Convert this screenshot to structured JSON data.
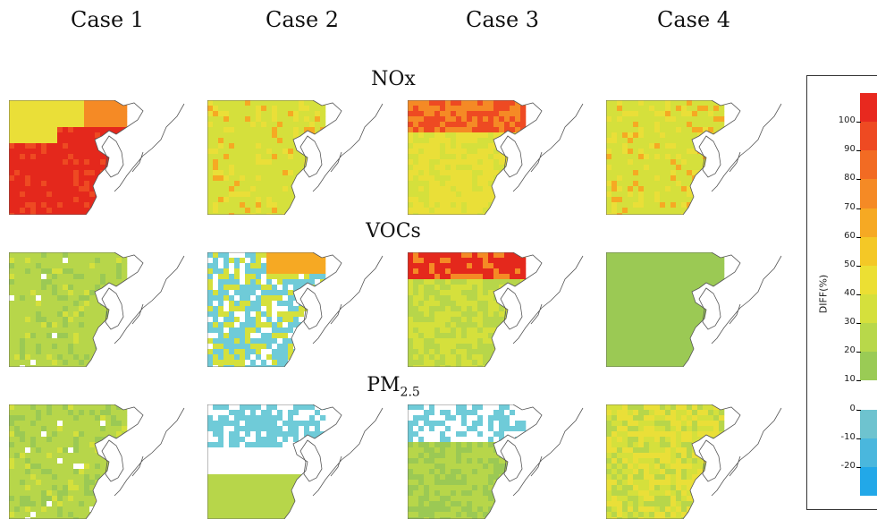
{
  "cases": [
    "Case 1",
    "Case 2",
    "Case 3",
    "Case 4"
  ],
  "rows": [
    {
      "label": "NOx",
      "sub": ""
    },
    {
      "label": "VOCs",
      "sub": ""
    },
    {
      "label": "PM",
      "sub": "2.5"
    }
  ],
  "panels": [
    [
      "high",
      "mid",
      "midhigh",
      "mid"
    ],
    [
      "low",
      "neg",
      "hot",
      "flat"
    ],
    [
      "low",
      "negmix",
      "negmix2",
      "mix"
    ]
  ],
  "legend": {
    "label": "DIFF(%)",
    "ticks": [
      "100.",
      "90.",
      "80.",
      "70.",
      "60.",
      "50.",
      "40.",
      "30.",
      "20.",
      "10.",
      "0.",
      "-10.",
      "-20."
    ],
    "colors": [
      "#e8291f",
      "#ee4a22",
      "#f26b23",
      "#f58a25",
      "#f6a923",
      "#f4c826",
      "#ecdf33",
      "#d5e03c",
      "#b8d84a",
      "#9acb55",
      "#ffffff",
      "#6ec3cf",
      "#4ab7dd",
      "#22a8e8"
    ]
  }
}
